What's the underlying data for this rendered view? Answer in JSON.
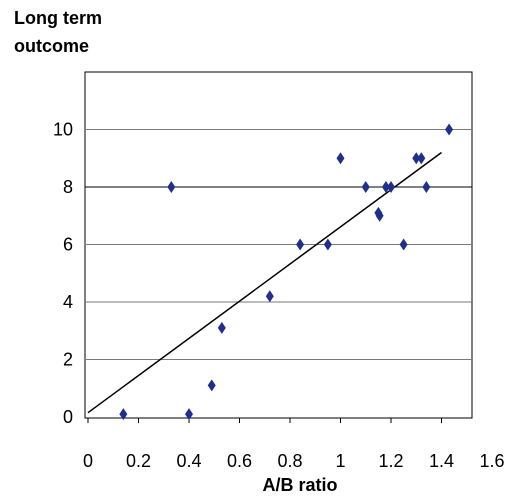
{
  "chart_data": {
    "type": "scatter",
    "ylabel_lines": [
      "Long term",
      "outcome"
    ],
    "xlabel": "A/B ratio",
    "xlim": [
      0,
      1.6
    ],
    "ylim": [
      0,
      12
    ],
    "xticks": [
      0,
      0.2,
      0.4,
      0.6,
      0.8,
      1,
      1.2,
      1.4,
      1.6
    ],
    "xtick_labels": [
      "0",
      "0.2",
      "0.4",
      "0.6",
      "0.8",
      "1",
      "1.2",
      "1.4",
      "1.6"
    ],
    "yticks": [
      0,
      2,
      4,
      6,
      8,
      10
    ],
    "ytick_labels": [
      "0",
      "2",
      "4",
      "6",
      "8",
      "10"
    ],
    "grid": "horizontal",
    "series": [
      {
        "marker": "diamond",
        "color": "#1f2f8c",
        "points": [
          {
            "x": 0.14,
            "y": 0.1
          },
          {
            "x": 0.33,
            "y": 8.0
          },
          {
            "x": 0.4,
            "y": 0.1
          },
          {
            "x": 0.49,
            "y": 1.1
          },
          {
            "x": 0.53,
            "y": 3.1
          },
          {
            "x": 0.72,
            "y": 4.2
          },
          {
            "x": 0.84,
            "y": 6.0
          },
          {
            "x": 0.95,
            "y": 6.0
          },
          {
            "x": 1.0,
            "y": 9.0
          },
          {
            "x": 1.1,
            "y": 8.0
          },
          {
            "x": 1.15,
            "y": 7.1
          },
          {
            "x": 1.155,
            "y": 7.0
          },
          {
            "x": 1.18,
            "y": 8.0
          },
          {
            "x": 1.2,
            "y": 8.0
          },
          {
            "x": 1.25,
            "y": 6.0
          },
          {
            "x": 1.3,
            "y": 9.0
          },
          {
            "x": 1.32,
            "y": 9.0
          },
          {
            "x": 1.34,
            "y": 8.0
          },
          {
            "x": 1.43,
            "y": 10.0
          }
        ]
      }
    ],
    "trendline": {
      "x0": 0,
      "y0": 0.15,
      "x1": 1.4,
      "y1": 9.2,
      "color": "#000000"
    }
  }
}
